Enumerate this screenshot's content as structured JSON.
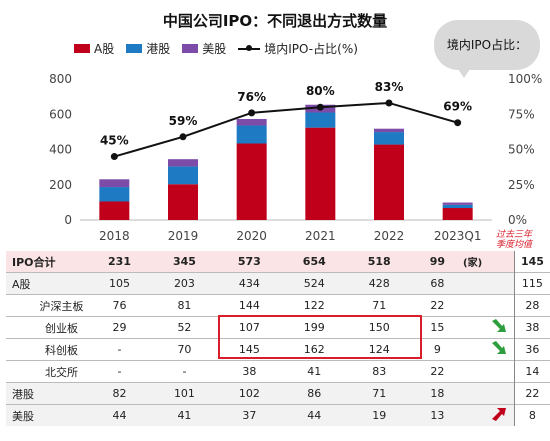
{
  "chart_data": {
    "type": "bar",
    "stacked": true,
    "title": "中国公司IPO：不同退出方式数量",
    "categories": [
      "2018",
      "2019",
      "2020",
      "2021",
      "2022",
      "2023Q1"
    ],
    "series": [
      {
        "name": "A股",
        "values": [
          105,
          203,
          434,
          524,
          428,
          68
        ],
        "color": "#c0001a"
      },
      {
        "name": "港股",
        "values": [
          82,
          101,
          102,
          86,
          71,
          18
        ],
        "color": "#1f7ac4"
      },
      {
        "name": "美股",
        "values": [
          44,
          41,
          37,
          44,
          19,
          13
        ],
        "color": "#7c4ca8"
      }
    ],
    "line": {
      "name": "境内IPO-占比(%)",
      "values": [
        45,
        59,
        76,
        80,
        83,
        69
      ],
      "labels": [
        "45%",
        "59%",
        "76%",
        "80%",
        "83%",
        "69%"
      ],
      "color": "#111111"
    },
    "y_left": {
      "min": 0,
      "max": 800,
      "ticks": [
        "0",
        "200",
        "400",
        "600",
        "800"
      ]
    },
    "y_right": {
      "min": 0,
      "max": 100,
      "ticks": [
        "0%",
        "25%",
        "50%",
        "75%",
        "100%"
      ]
    },
    "legend_position": "top-left"
  },
  "bubble_text": "境内IPO占比：",
  "table": {
    "unit": "(家)",
    "note": "过去三年\n季度均值",
    "rows": [
      {
        "label": "IPO合计",
        "values": [
          "231",
          "345",
          "573",
          "654",
          "518",
          "99"
        ],
        "side": "145",
        "arrow": ""
      },
      {
        "label": "A股",
        "values": [
          "105",
          "203",
          "434",
          "524",
          "428",
          "68"
        ],
        "side": "115",
        "arrow": ""
      },
      {
        "label": "沪深主板",
        "values": [
          "76",
          "81",
          "144",
          "122",
          "71",
          "22"
        ],
        "side": "28",
        "arrow": ""
      },
      {
        "label": "创业板",
        "values": [
          "29",
          "52",
          "107",
          "199",
          "150",
          "15"
        ],
        "side": "38",
        "arrow": "down"
      },
      {
        "label": "科创板",
        "values": [
          "-",
          "70",
          "145",
          "162",
          "124",
          "9"
        ],
        "side": "36",
        "arrow": "down"
      },
      {
        "label": "北交所",
        "values": [
          "-",
          "-",
          "38",
          "41",
          "83",
          "22"
        ],
        "side": "14",
        "arrow": ""
      },
      {
        "label": "港股",
        "values": [
          "82",
          "101",
          "102",
          "86",
          "71",
          "18"
        ],
        "side": "22",
        "arrow": ""
      },
      {
        "label": "美股",
        "values": [
          "44",
          "41",
          "37",
          "44",
          "19",
          "13"
        ],
        "side": "8",
        "arrow": "up"
      }
    ]
  },
  "colors": {
    "arrow_down": "#2e9e3e",
    "arrow_up": "#c0001a",
    "highlight_box": "#d81e2a"
  }
}
